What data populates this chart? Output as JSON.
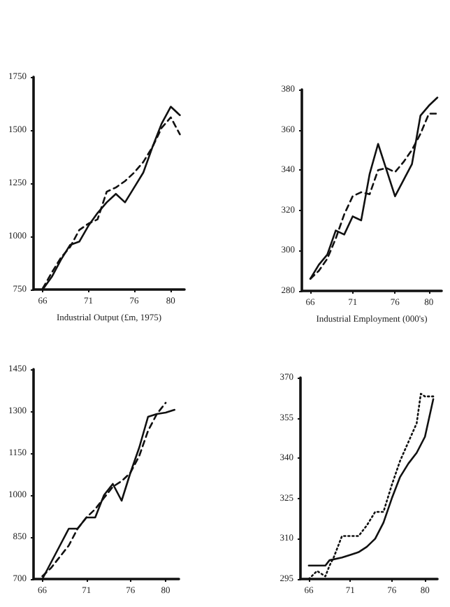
{
  "chart_data": [
    {
      "type": "line",
      "xlabel": "Industrial Output (£m, 1975)",
      "x": [
        66,
        67,
        68,
        69,
        70,
        71,
        72,
        73,
        74,
        75,
        76,
        77,
        78,
        79,
        80,
        81
      ],
      "xlim": [
        65,
        81.5
      ],
      "xticks": [
        66,
        71,
        76,
        80
      ],
      "ylim": [
        750,
        1750
      ],
      "yticks": [
        750,
        1000,
        1250,
        1500,
        1750
      ],
      "grid": false,
      "series": [
        {
          "color": "#111111",
          "line_style": "solid",
          "values": [
            750,
            810,
            890,
            960,
            975,
            1050,
            1110,
            1160,
            1200,
            1160,
            1230,
            1300,
            1420,
            1530,
            1610,
            1570
          ]
        },
        {
          "color": "#111111",
          "line_style": "dashed",
          "values": [
            755,
            830,
            900,
            950,
            1030,
            1060,
            1080,
            1210,
            1230,
            1260,
            1300,
            1350,
            1420,
            1510,
            1560,
            1480
          ]
        }
      ]
    },
    {
      "type": "line",
      "xlabel": "Industrial Employment (000's)",
      "x": [
        66,
        67,
        68,
        69,
        70,
        71,
        72,
        73,
        74,
        75,
        76,
        77,
        78,
        79,
        80,
        81
      ],
      "xlim": [
        65,
        81.5
      ],
      "xticks": [
        66,
        71,
        76,
        80
      ],
      "ylim": [
        280,
        380
      ],
      "yticks": [
        280,
        300,
        320,
        340,
        360,
        380
      ],
      "grid": false,
      "series": [
        {
          "color": "#111111",
          "line_style": "solid",
          "values": [
            286,
            293,
            298,
            310,
            308,
            317,
            315,
            338,
            353,
            340,
            327,
            335,
            343,
            367,
            372,
            376
          ]
        },
        {
          "color": "#111111",
          "line_style": "dashed",
          "values": [
            286,
            290,
            296,
            306,
            318,
            327,
            329,
            328,
            340,
            341,
            339,
            344,
            350,
            358,
            368,
            368
          ]
        }
      ]
    },
    {
      "type": "line",
      "x": [
        66,
        67,
        68,
        69,
        70,
        71,
        72,
        73,
        74,
        75,
        76,
        77,
        78,
        79,
        80,
        81
      ],
      "xlim": [
        65,
        81.5
      ],
      "xticks": [
        66,
        71,
        76,
        80
      ],
      "ylim": [
        700,
        1450
      ],
      "yticks": [
        700,
        850,
        1000,
        1150,
        1300,
        1450
      ],
      "grid": false,
      "series": [
        {
          "color": "#111111",
          "line_style": "solid",
          "values": [
            700,
            760,
            820,
            880,
            880,
            920,
            920,
            1000,
            1040,
            980,
            1080,
            1170,
            1280,
            1290,
            1295,
            1305
          ]
        },
        {
          "color": "#111111",
          "line_style": "dashed",
          "values": [
            710,
            740,
            780,
            820,
            880,
            920,
            950,
            990,
            1030,
            1050,
            1080,
            1140,
            1230,
            1290,
            1330,
            null
          ]
        }
      ]
    },
    {
      "type": "line",
      "xlim": [
        65,
        81.5
      ],
      "xticks": [
        66,
        71,
        76,
        80
      ],
      "ylim": [
        295,
        370
      ],
      "yticks": [
        295,
        310,
        325,
        340,
        355,
        370
      ],
      "grid": false,
      "series": [
        {
          "color": "#111111",
          "line_style": "solid",
          "x": [
            66,
            68,
            68.5,
            70,
            71,
            72,
            73,
            74,
            75,
            76,
            77,
            78,
            79,
            80,
            81
          ],
          "values": [
            300,
            300,
            302,
            303,
            304,
            305,
            307,
            310,
            316,
            325,
            333,
            338,
            342,
            348,
            362
          ]
        },
        {
          "color": "#111111",
          "line_style": "dotted",
          "x": [
            66,
            67,
            68,
            68.5,
            69,
            70,
            71,
            72,
            73,
            74,
            75,
            76,
            77,
            78,
            79,
            79.5,
            80,
            81
          ],
          "values": [
            295,
            298,
            296,
            300,
            303,
            311,
            311,
            311,
            315,
            320,
            320,
            330,
            339,
            346,
            353,
            364,
            363,
            363
          ]
        }
      ]
    }
  ]
}
